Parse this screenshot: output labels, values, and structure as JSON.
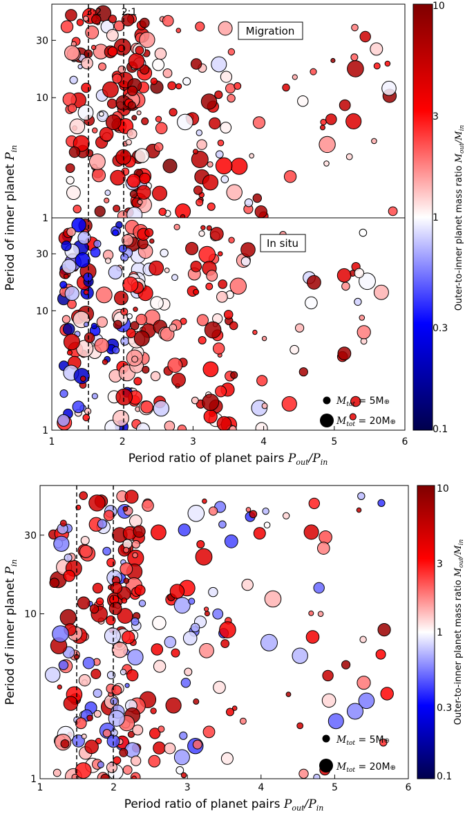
{
  "colors": {
    "low": "#00004c",
    "mid": "#ffffff",
    "high": "#7f0000",
    "blue": "#0000ff",
    "red": "#ff0000",
    "dashed_line": "#000000"
  },
  "chart_data": [
    {
      "type": "scatter",
      "panel": "top",
      "annotation": "Migration",
      "resonance_labels": [
        "3:2",
        "2:1"
      ],
      "resonance_x": [
        1.5,
        2.0
      ],
      "xlim": [
        1,
        6
      ],
      "ylim": [
        1,
        60
      ],
      "y_scale": "log",
      "xticks": [
        "1",
        "2",
        "3",
        "4",
        "5",
        "6"
      ],
      "yticks": [
        "1",
        "10",
        "30"
      ],
      "ylabel": "Period of inner planet P_in",
      "grid": false
    },
    {
      "type": "scatter",
      "panel": "middle",
      "annotation": "In situ",
      "resonance_x": [
        1.5,
        2.0
      ],
      "xlim": [
        1,
        6
      ],
      "ylim": [
        1,
        60
      ],
      "y_scale": "log",
      "xticks": [
        "1",
        "2",
        "3",
        "4",
        "5",
        "6"
      ],
      "yticks": [
        "1",
        "10",
        "30"
      ],
      "xlabel": "Period ratio of planet pairs P_out/P_in",
      "legend": [
        "M_tot = 5M_⊕",
        "M_tot = 20M_⊕"
      ],
      "legend_position": "bottom-right",
      "grid": false
    },
    {
      "type": "scatter",
      "panel": "bottom",
      "resonance_x": [
        1.5,
        2.0
      ],
      "xlim": [
        1,
        6
      ],
      "ylim": [
        1,
        60
      ],
      "y_scale": "log",
      "xticks": [
        "1",
        "2",
        "3",
        "4",
        "5",
        "6"
      ],
      "yticks": [
        "1",
        "10",
        "30"
      ],
      "xlabel": "Period ratio of planet pairs P_out/P_in",
      "ylabel": "Period of inner planet P_in",
      "legend": [
        "M_tot = 5M_⊕",
        "M_tot = 20M_⊕"
      ],
      "legend_position": "bottom-right",
      "grid": false
    }
  ],
  "colorbar": {
    "label": "Outer-to-inner planet mass ratio M_out/M_in",
    "scale": "log",
    "range": [
      0.1,
      10
    ],
    "ticks": [
      "0.1",
      "0.3",
      "1",
      "3",
      "10"
    ]
  },
  "text": {
    "top_box": "Migration",
    "mid_box": "In situ",
    "res32": "3:2",
    "res21": "2:1",
    "ylabel_prefix": "Period of inner planet ",
    "ylabel_math": "P",
    "ylabel_sub": "in",
    "xlabel_prefix": "Period ratio of planet pairs ",
    "xlabel_math": "P",
    "xlabel_sub1": "out",
    "xlabel_slash": "/",
    "xlabel_sub2": "in",
    "cbar_prefix": "Outer-to-inner planet mass ratio ",
    "cbar_math": "M",
    "cbar_sub1": "out",
    "cbar_slash": "/",
    "cbar_sub2": "in",
    "legend_small": "M",
    "legend_small_sub": "tot",
    "legend_small_rhs": " = 5M",
    "legend_large_rhs": " = 20M",
    "earth": "⊕"
  }
}
